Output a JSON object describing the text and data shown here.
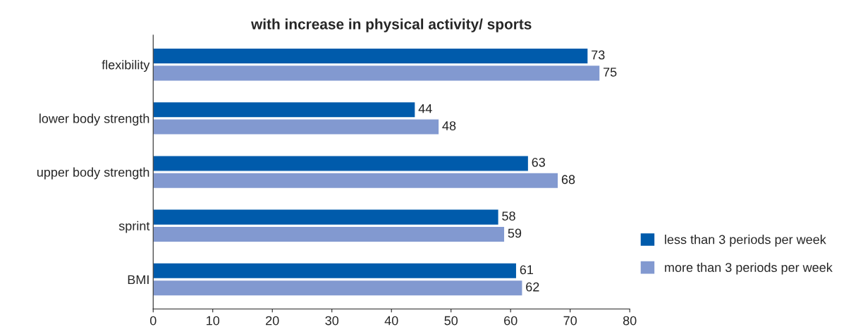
{
  "chart_data": {
    "type": "bar",
    "orientation": "horizontal",
    "title": "with increase in physical activity/ sports",
    "categories": [
      "flexibility",
      "lower body strength",
      "upper body strength",
      "sprint",
      "BMI"
    ],
    "series": [
      {
        "name": "less than 3 periods per week",
        "color": "#005bab",
        "values": [
          73,
          44,
          63,
          58,
          61
        ]
      },
      {
        "name": "more than 3 periods per week",
        "color": "#8299d0",
        "values": [
          75,
          48,
          68,
          59,
          62
        ]
      }
    ],
    "xlim": [
      0,
      80
    ],
    "xticks": [
      0,
      10,
      20,
      30,
      40,
      50,
      60,
      70,
      80
    ],
    "data_labels": true,
    "legend": "right",
    "grid": false
  }
}
